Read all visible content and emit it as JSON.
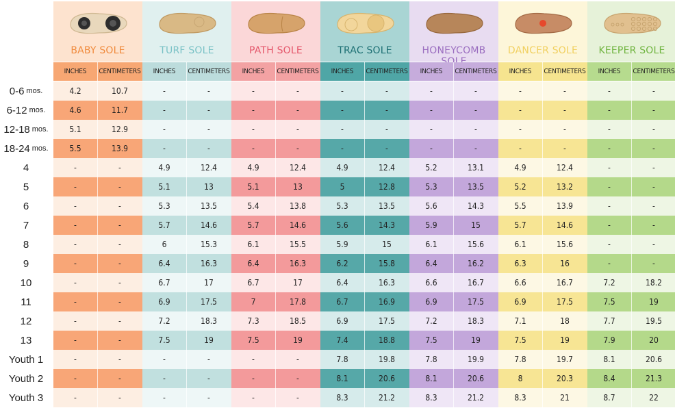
{
  "row_labels": [
    {
      "main": "0-6",
      "sub": "mos."
    },
    {
      "main": "6-12",
      "sub": "mos."
    },
    {
      "main": "12-18",
      "sub": "mos."
    },
    {
      "main": "18-24",
      "sub": "mos."
    },
    {
      "main": "4",
      "sub": ""
    },
    {
      "main": "5",
      "sub": ""
    },
    {
      "main": "6",
      "sub": ""
    },
    {
      "main": "7",
      "sub": ""
    },
    {
      "main": "8",
      "sub": ""
    },
    {
      "main": "9",
      "sub": ""
    },
    {
      "main": "10",
      "sub": ""
    },
    {
      "main": "11",
      "sub": ""
    },
    {
      "main": "12",
      "sub": ""
    },
    {
      "main": "13",
      "sub": ""
    },
    {
      "main": "Youth 1",
      "sub": ""
    },
    {
      "main": "Youth 2",
      "sub": ""
    },
    {
      "main": "Youth 3",
      "sub": ""
    }
  ],
  "soles": [
    {
      "title": "BABY SOLE",
      "icon": "baby-sole-icon",
      "title_color": "#f08a3c",
      "head_bg": "#fde3cf",
      "unit_bg": "#f7a773",
      "light": "#fdeee2",
      "dark": "#f8a677",
      "inches": [
        "4.2",
        "4.6",
        "5.1",
        "5.5",
        "-",
        "-",
        "-",
        "-",
        "-",
        "-",
        "-",
        "-",
        "-",
        "-",
        "-",
        "-",
        "-"
      ],
      "centimeters": [
        "10.7",
        "11.7",
        "12.9",
        "13.9",
        "-",
        "-",
        "-",
        "-",
        "-",
        "-",
        "-",
        "-",
        "-",
        "-",
        "-",
        "-",
        "-"
      ]
    },
    {
      "title": "TURF SOLE",
      "icon": "turf-sole-icon",
      "title_color": "#7ac2c6",
      "head_bg": "#e0f0ef",
      "unit_bg": "#bcdcdc",
      "light": "#eef7f7",
      "dark": "#c1e0df",
      "inches": [
        "-",
        "-",
        "-",
        "-",
        "4.9",
        "5.1",
        "5.3",
        "5.7",
        "6",
        "6.4",
        "6.7",
        "6.9",
        "7.2",
        "7.5",
        "-",
        "-",
        "-"
      ],
      "centimeters": [
        "-",
        "-",
        "-",
        "-",
        "12.4",
        "13",
        "13.5",
        "14.6",
        "15.3",
        "16.3",
        "17",
        "17.5",
        "18.3",
        "19",
        "-",
        "-",
        "-"
      ]
    },
    {
      "title": "PATH SOLE",
      "icon": "path-sole-icon",
      "title_color": "#e4566a",
      "head_bg": "#fbd7d8",
      "unit_bg": "#f3a2a3",
      "light": "#fde7e7",
      "dark": "#f39a9b",
      "inches": [
        "-",
        "-",
        "-",
        "-",
        "4.9",
        "5.1",
        "5.4",
        "5.7",
        "6.1",
        "6.4",
        "6.7",
        "7",
        "7.3",
        "7.5",
        "-",
        "-",
        "-"
      ],
      "centimeters": [
        "-",
        "-",
        "-",
        "-",
        "12.4",
        "13",
        "13.8",
        "14.6",
        "15.5",
        "16.3",
        "17",
        "17.8",
        "18.5",
        "19",
        "-",
        "-",
        "-"
      ]
    },
    {
      "title": "TRAC SOLE",
      "icon": "trac-sole-icon",
      "title_color": "#1c6f73",
      "head_bg": "#a9d5d4",
      "unit_bg": "#4fa6a6",
      "light": "#d6ebeb",
      "dark": "#56a8a8",
      "inches": [
        "-",
        "-",
        "-",
        "-",
        "4.9",
        "5",
        "5.3",
        "5.6",
        "5.9",
        "6.2",
        "6.4",
        "6.7",
        "6.9",
        "7.4",
        "7.8",
        "8.1",
        "8.3"
      ],
      "centimeters": [
        "-",
        "-",
        "-",
        "-",
        "12.4",
        "12.8",
        "13.5",
        "14.3",
        "15",
        "15.8",
        "16.3",
        "16.9",
        "17.5",
        "18.8",
        "19.8",
        "20.6",
        "21.2"
      ]
    },
    {
      "title": "HONEYCOMB SOLE",
      "icon": "honeycomb-sole-icon",
      "title_color": "#9b6ec0",
      "head_bg": "#e8dcf1",
      "unit_bg": "#c6acdc",
      "light": "#efe6f6",
      "dark": "#c3a7db",
      "inches": [
        "-",
        "-",
        "-",
        "-",
        "5.2",
        "5.3",
        "5.6",
        "5.9",
        "6.1",
        "6.4",
        "6.6",
        "6.9",
        "7.2",
        "7.5",
        "7.8",
        "8.1",
        "8.3"
      ],
      "centimeters": [
        "-",
        "-",
        "-",
        "-",
        "13.1",
        "13.5",
        "14.3",
        "15",
        "15.6",
        "16.2",
        "16.7",
        "17.5",
        "18.3",
        "19",
        "19.9",
        "20.6",
        "21.2"
      ]
    },
    {
      "title": "DANCER SOLE",
      "icon": "dancer-sole-icon",
      "title_color": "#f1d060",
      "head_bg": "#fdf6d9",
      "unit_bg": "#f6e48f",
      "light": "#fdf8e4",
      "dark": "#f7e594",
      "inches": [
        "-",
        "-",
        "-",
        "-",
        "4.9",
        "5.2",
        "5.5",
        "5.7",
        "6.1",
        "6.3",
        "6.6",
        "6.9",
        "7.1",
        "7.5",
        "7.8",
        "8",
        "8.3"
      ],
      "centimeters": [
        "-",
        "-",
        "-",
        "-",
        "12.4",
        "13.2",
        "13.9",
        "14.6",
        "15.6",
        "16",
        "16.7",
        "17.5",
        "18",
        "19",
        "19.7",
        "20.3",
        "21"
      ]
    },
    {
      "title": "KEEPER SOLE",
      "icon": "keeper-sole-icon",
      "title_color": "#6fb43f",
      "head_bg": "#e6f2d9",
      "unit_bg": "#b6db8e",
      "light": "#eef6e4",
      "dark": "#b4d98a",
      "inches": [
        "-",
        "-",
        "-",
        "-",
        "-",
        "-",
        "-",
        "-",
        "-",
        "-",
        "7.2",
        "7.5",
        "7.7",
        "7.9",
        "8.1",
        "8.4",
        "8.7"
      ],
      "centimeters": [
        "-",
        "-",
        "-",
        "-",
        "-",
        "-",
        "-",
        "-",
        "-",
        "-",
        "18.2",
        "19",
        "19.5",
        "20",
        "20.6",
        "21.3",
        "22"
      ]
    }
  ],
  "unit_labels": {
    "inches": "INCHES",
    "centimeters": "CENTIMETERS"
  }
}
